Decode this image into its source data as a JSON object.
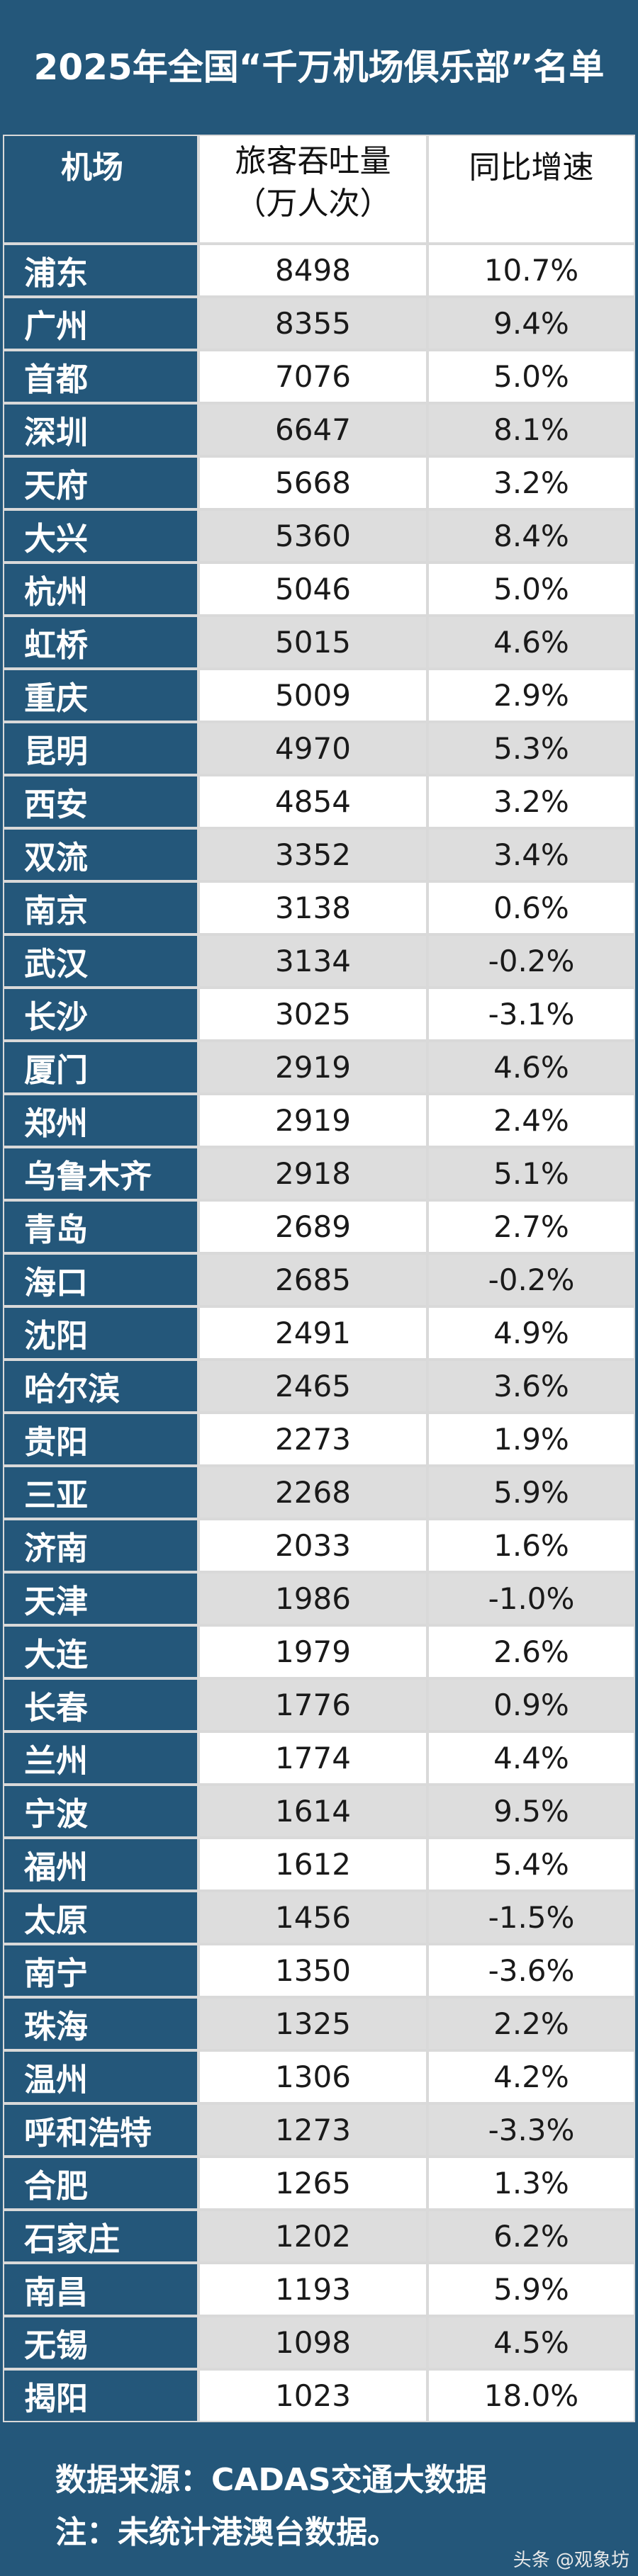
{
  "title": "2025年全国“千万机场俱乐部”名单",
  "headers": {
    "airport": "机场",
    "traffic_line1": "旅客吞吐量",
    "traffic_line2": "（万人次）",
    "growth": "同比增速"
  },
  "rows": [
    {
      "airport": "浦东",
      "traffic": "8498",
      "growth": "10.7%"
    },
    {
      "airport": "广州",
      "traffic": "8355",
      "growth": "9.4%"
    },
    {
      "airport": "首都",
      "traffic": "7076",
      "growth": "5.0%"
    },
    {
      "airport": "深圳",
      "traffic": "6647",
      "growth": "8.1%"
    },
    {
      "airport": "天府",
      "traffic": "5668",
      "growth": "3.2%"
    },
    {
      "airport": "大兴",
      "traffic": "5360",
      "growth": "8.4%"
    },
    {
      "airport": "杭州",
      "traffic": "5046",
      "growth": "5.0%"
    },
    {
      "airport": "虹桥",
      "traffic": "5015",
      "growth": "4.6%"
    },
    {
      "airport": "重庆",
      "traffic": "5009",
      "growth": "2.9%"
    },
    {
      "airport": "昆明",
      "traffic": "4970",
      "growth": "5.3%"
    },
    {
      "airport": "西安",
      "traffic": "4854",
      "growth": "3.2%"
    },
    {
      "airport": "双流",
      "traffic": "3352",
      "growth": "3.4%"
    },
    {
      "airport": "南京",
      "traffic": "3138",
      "growth": "0.6%"
    },
    {
      "airport": "武汉",
      "traffic": "3134",
      "growth": "-0.2%"
    },
    {
      "airport": "长沙",
      "traffic": "3025",
      "growth": "-3.1%"
    },
    {
      "airport": "厦门",
      "traffic": "2919",
      "growth": "4.6%"
    },
    {
      "airport": "郑州",
      "traffic": "2919",
      "growth": "2.4%"
    },
    {
      "airport": "乌鲁木齐",
      "traffic": "2918",
      "growth": "5.1%"
    },
    {
      "airport": "青岛",
      "traffic": "2689",
      "growth": "2.7%"
    },
    {
      "airport": "海口",
      "traffic": "2685",
      "growth": "-0.2%"
    },
    {
      "airport": "沈阳",
      "traffic": "2491",
      "growth": "4.9%"
    },
    {
      "airport": "哈尔滨",
      "traffic": "2465",
      "growth": "3.6%"
    },
    {
      "airport": "贵阳",
      "traffic": "2273",
      "growth": "1.9%"
    },
    {
      "airport": "三亚",
      "traffic": "2268",
      "growth": "5.9%"
    },
    {
      "airport": "济南",
      "traffic": "2033",
      "growth": "1.6%"
    },
    {
      "airport": "天津",
      "traffic": "1986",
      "growth": "-1.0%"
    },
    {
      "airport": "大连",
      "traffic": "1979",
      "growth": "2.6%"
    },
    {
      "airport": "长春",
      "traffic": "1776",
      "growth": "0.9%"
    },
    {
      "airport": "兰州",
      "traffic": "1774",
      "growth": "4.4%"
    },
    {
      "airport": "宁波",
      "traffic": "1614",
      "growth": "9.5%"
    },
    {
      "airport": "福州",
      "traffic": "1612",
      "growth": "5.4%"
    },
    {
      "airport": "太原",
      "traffic": "1456",
      "growth": "-1.5%"
    },
    {
      "airport": "南宁",
      "traffic": "1350",
      "growth": "-3.6%"
    },
    {
      "airport": "珠海",
      "traffic": "1325",
      "growth": "2.2%"
    },
    {
      "airport": "温州",
      "traffic": "1306",
      "growth": "4.2%"
    },
    {
      "airport": "呼和浩特",
      "traffic": "1273",
      "growth": "-3.3%"
    },
    {
      "airport": "合肥",
      "traffic": "1265",
      "growth": "1.3%"
    },
    {
      "airport": "石家庄",
      "traffic": "1202",
      "growth": "6.2%"
    },
    {
      "airport": "南昌",
      "traffic": "1193",
      "growth": "5.9%"
    },
    {
      "airport": "无锡",
      "traffic": "1098",
      "growth": "4.5%"
    },
    {
      "airport": "揭阳",
      "traffic": "1023",
      "growth": "18.0%"
    }
  ],
  "footer": {
    "source": "数据来源：CADAS交通大数据",
    "note": "注：未统计港澳台数据。"
  },
  "watermark": "头条 @观象坊",
  "colors": {
    "primary_blue": "#24577a",
    "row_light": "#ffffff",
    "row_shade": "#dddddd"
  }
}
